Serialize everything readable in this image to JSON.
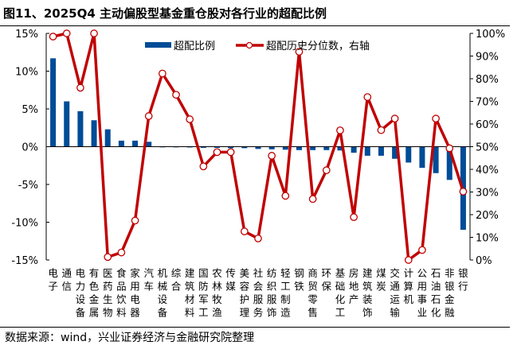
{
  "title": "图11、2025Q4 主动偏股型基金重仓股对各行业的超配比例",
  "source": "数据来源：wind，兴业证券经济与金融研究院整理",
  "chart_data": {
    "type": "bar+line",
    "title": "",
    "categories": [
      "电子",
      "通信",
      "电力设备",
      "有色金属",
      "医药生物",
      "食品饮料",
      "家用电器",
      "汽车",
      "机械设备",
      "综合",
      "建筑材料",
      "国防军工",
      "农林牧渔",
      "传媒",
      "美容护理",
      "社会服务",
      "纺织服饰",
      "轻工制造",
      "钢铁",
      "商贸零售",
      "环保",
      "基础化工",
      "房地产",
      "建筑装饰",
      "煤炭",
      "交通运输",
      "计算机",
      "公用事业",
      "石油石化",
      "非银金融",
      "银行"
    ],
    "series": [
      {
        "name": "超配比例",
        "type": "bar",
        "axis": "left",
        "color": "#004C97",
        "values": [
          11.7,
          6.0,
          4.7,
          3.5,
          2.3,
          0.8,
          0.8,
          0.65,
          0.0,
          -0.05,
          -0.1,
          -0.15,
          -0.15,
          -0.2,
          -0.2,
          -0.3,
          -0.35,
          -0.4,
          -0.45,
          -0.45,
          -0.45,
          -0.5,
          -0.8,
          -1.2,
          -1.2,
          -1.6,
          -2.1,
          -2.8,
          -3.5,
          -4.4,
          -11.0
        ]
      },
      {
        "name": "超配历史分位数，右轴",
        "type": "line",
        "axis": "right",
        "color": "#C00000",
        "values": [
          98.6,
          100,
          76,
          100,
          1.3,
          3.3,
          17.4,
          63.5,
          82.3,
          72.9,
          62.1,
          41.3,
          47.6,
          47.6,
          12.6,
          9.5,
          46,
          28.3,
          91.9,
          26.9,
          39.6,
          57.2,
          18.9,
          71.9,
          57.3,
          62.4,
          0,
          4.4,
          62.4,
          49.3,
          30.2
        ]
      }
    ],
    "left_axis": {
      "min": -15,
      "max": 15,
      "ticks": [
        "15%",
        "10%",
        "5%",
        "0%",
        "-5%",
        "-10%",
        "-15%"
      ],
      "tick_values": [
        15,
        10,
        5,
        0,
        -5,
        -10,
        -15
      ]
    },
    "right_axis": {
      "min": 0,
      "max": 100,
      "ticks": [
        "100%",
        "90%",
        "80%",
        "70%",
        "60%",
        "50%",
        "40%",
        "30%",
        "20%",
        "10%",
        "0%"
      ],
      "tick_values": [
        100,
        90,
        80,
        70,
        60,
        50,
        40,
        30,
        20,
        10,
        0
      ]
    },
    "legend": {
      "placement": "top-center",
      "entries": [
        "超配比例",
        "超配历史分位数，右轴"
      ]
    },
    "grid": false
  }
}
